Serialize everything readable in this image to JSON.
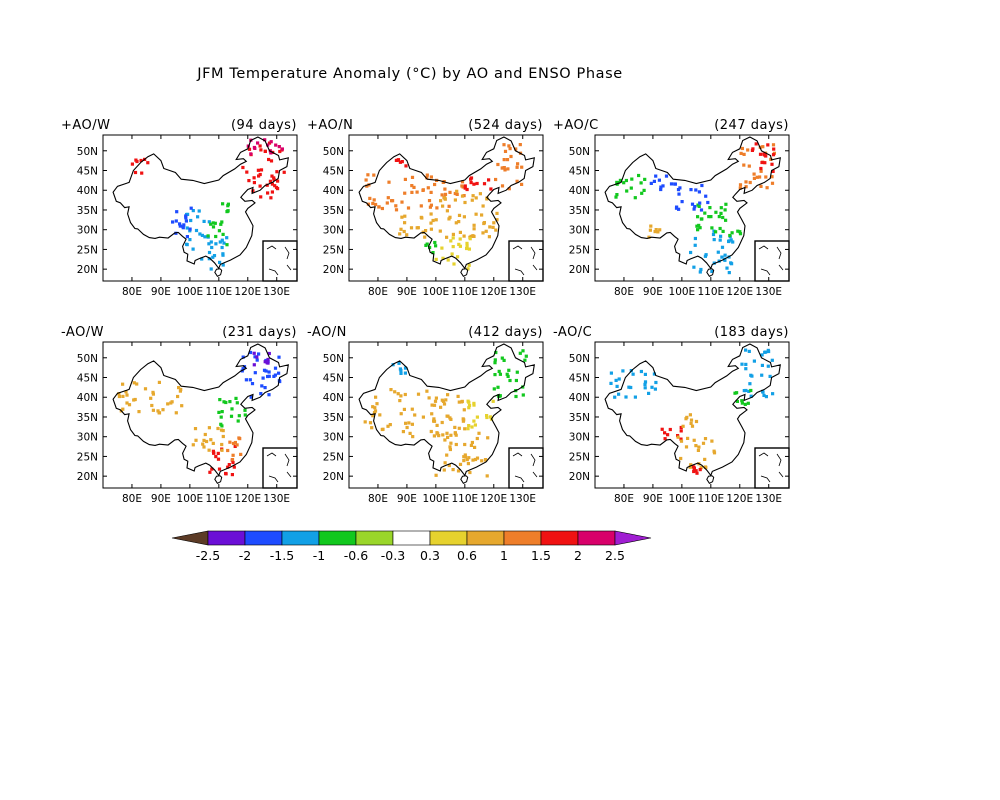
{
  "title": "JFM Temperature Anomaly (°C) by AO and ENSO Phase",
  "map_axes": {
    "lon_min": 70,
    "lon_max": 137,
    "lat_min": 17,
    "lat_max": 54,
    "lon_ticks": [
      80,
      90,
      100,
      110,
      120,
      130
    ],
    "lat_ticks": [
      20,
      25,
      30,
      35,
      40,
      45,
      50
    ],
    "lon_tick_labels": [
      "80E",
      "90E",
      "100E",
      "110E",
      "120E",
      "130E"
    ],
    "lat_tick_labels": [
      "20N",
      "25N",
      "30N",
      "35N",
      "40N",
      "45N",
      "50N"
    ]
  },
  "colorbar": {
    "levels": [
      "-2.5",
      "-2",
      "-1.5",
      "-1",
      "-0.6",
      "-0.3",
      "0.3",
      "0.6",
      "1",
      "1.5",
      "2",
      "2.5"
    ],
    "colors": [
      "#5c3b26",
      "#6b0fd6",
      "#1e4cff",
      "#12a0e6",
      "#12c81e",
      "#9ad62a",
      "#ffffff",
      "#e6d22e",
      "#e6a82e",
      "#ee7e2a",
      "#f01212",
      "#d8006a",
      "#a01ed2"
    ]
  },
  "panels": [
    {
      "phase": "+AO/W",
      "days": "(94 days)",
      "regions": [
        {
          "lon": [
            118,
            133
          ],
          "lat": [
            38,
            52
          ],
          "bin": 10
        },
        {
          "lon": [
            120,
            132
          ],
          "lat": [
            48,
            53
          ],
          "bin": 11
        },
        {
          "lon": [
            104,
            115
          ],
          "lat": [
            20,
            28
          ],
          "bin": 3
        },
        {
          "lon": [
            98,
            107
          ],
          "lat": [
            25,
            35
          ],
          "bin": 3
        },
        {
          "lon": [
            93,
            101
          ],
          "lat": [
            28,
            36
          ],
          "bin": 2
        },
        {
          "lon": [
            106,
            113
          ],
          "lat": [
            26,
            32
          ],
          "bin": 4
        },
        {
          "lon": [
            80,
            86
          ],
          "lat": [
            44,
            48
          ],
          "bin": 10
        },
        {
          "lon": [
            110,
            114
          ],
          "lat": [
            34,
            37
          ],
          "bin": 4
        }
      ]
    },
    {
      "phase": "+AO/N",
      "days": "(524 days)",
      "regions": [
        {
          "lon": [
            75,
            110
          ],
          "lat": [
            35,
            44
          ],
          "bin": 9
        },
        {
          "lon": [
            110,
            120
          ],
          "lat": [
            40,
            44
          ],
          "bin": 10
        },
        {
          "lon": [
            120,
            130
          ],
          "lat": [
            40,
            52
          ],
          "bin": 9
        },
        {
          "lon": [
            100,
            122
          ],
          "lat": [
            28,
            40
          ],
          "bin": 8
        },
        {
          "lon": [
            85,
            100
          ],
          "lat": [
            28,
            34
          ],
          "bin": 8
        },
        {
          "lon": [
            100,
            112
          ],
          "lat": [
            20,
            28
          ],
          "bin": 7
        },
        {
          "lon": [
            96,
            100
          ],
          "lat": [
            24,
            27
          ],
          "bin": 4
        },
        {
          "lon": [
            86,
            90
          ],
          "lat": [
            46,
            49
          ],
          "bin": 10
        }
      ]
    },
    {
      "phase": "+AO/C",
      "days": "(247 days)",
      "regions": [
        {
          "lon": [
            103,
            118
          ],
          "lat": [
            19,
            30
          ],
          "bin": 3
        },
        {
          "lon": [
            105,
            122
          ],
          "lat": [
            28,
            37
          ],
          "bin": 4
        },
        {
          "lon": [
            98,
            110
          ],
          "lat": [
            35,
            42
          ],
          "bin": 2
        },
        {
          "lon": [
            88,
            98
          ],
          "lat": [
            40,
            44
          ],
          "bin": 2
        },
        {
          "lon": [
            75,
            88
          ],
          "lat": [
            38,
            44
          ],
          "bin": 4
        },
        {
          "lon": [
            120,
            132
          ],
          "lat": [
            40,
            52
          ],
          "bin": 9
        },
        {
          "lon": [
            124,
            132
          ],
          "lat": [
            44,
            52
          ],
          "bin": 10
        },
        {
          "lon": [
            88,
            94
          ],
          "lat": [
            28,
            31
          ],
          "bin": 8
        }
      ]
    },
    {
      "phase": "-AO/W",
      "days": "(231 days)",
      "regions": [
        {
          "lon": [
            118,
            132
          ],
          "lat": [
            40,
            52
          ],
          "bin": 2
        },
        {
          "lon": [
            110,
            120
          ],
          "lat": [
            32,
            40
          ],
          "bin": 4
        },
        {
          "lon": [
            105,
            116
          ],
          "lat": [
            20,
            28
          ],
          "bin": 10
        },
        {
          "lon": [
            100,
            112
          ],
          "lat": [
            26,
            33
          ],
          "bin": 8
        },
        {
          "lon": [
            75,
            98
          ],
          "lat": [
            36,
            44
          ],
          "bin": 8
        },
        {
          "lon": [
            112,
            118
          ],
          "lat": [
            24,
            30
          ],
          "bin": 9
        },
        {
          "lon": [
            122,
            128
          ],
          "lat": [
            48,
            52
          ],
          "bin": 1
        }
      ]
    },
    {
      "phase": "-AO/N",
      "days": "(412 days)",
      "regions": [
        {
          "lon": [
            120,
            132
          ],
          "lat": [
            40,
            52
          ],
          "bin": 4
        },
        {
          "lon": [
            75,
            110
          ],
          "lat": [
            30,
            42
          ],
          "bin": 8
        },
        {
          "lon": [
            100,
            118
          ],
          "lat": [
            20,
            32
          ],
          "bin": 8
        },
        {
          "lon": [
            110,
            120
          ],
          "lat": [
            32,
            40
          ],
          "bin": 7
        },
        {
          "lon": [
            85,
            90
          ],
          "lat": [
            46,
            49
          ],
          "bin": 3
        }
      ]
    },
    {
      "phase": "-AO/C",
      "days": "(183 days)",
      "regions": [
        {
          "lon": [
            120,
            132
          ],
          "lat": [
            40,
            52
          ],
          "bin": 3
        },
        {
          "lon": [
            118,
            124
          ],
          "lat": [
            38,
            42
          ],
          "bin": 4
        },
        {
          "lon": [
            75,
            92
          ],
          "lat": [
            40,
            47
          ],
          "bin": 3
        },
        {
          "lon": [
            92,
            100
          ],
          "lat": [
            29,
            33
          ],
          "bin": 10
        },
        {
          "lon": [
            98,
            112
          ],
          "lat": [
            22,
            30
          ],
          "bin": 8
        },
        {
          "lon": [
            100,
            106
          ],
          "lat": [
            32,
            36
          ],
          "bin": 8
        },
        {
          "lon": [
            104,
            108
          ],
          "lat": [
            20,
            24
          ],
          "bin": 10
        }
      ]
    }
  ]
}
